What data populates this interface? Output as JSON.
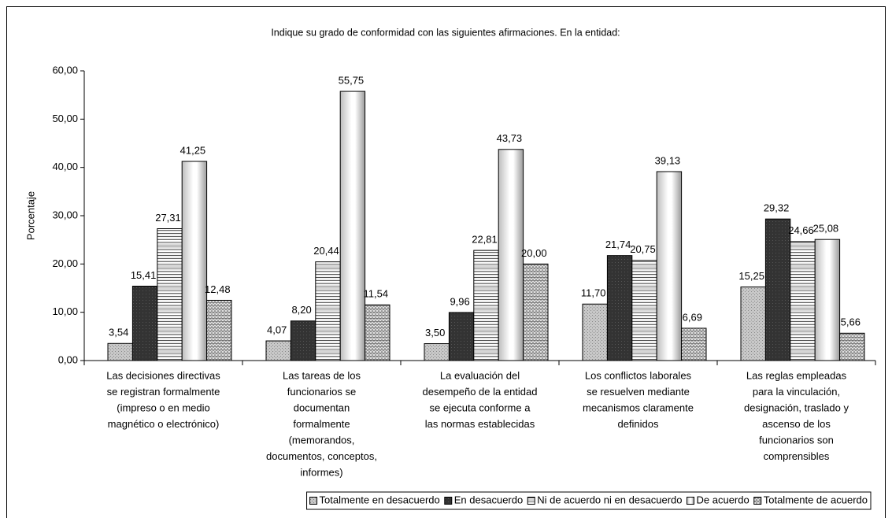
{
  "chart_data": {
    "type": "bar",
    "title": "Indique su grado de conformidad con las siguientes afirmaciones. En la entidad:",
    "y_label": "Porcentaje",
    "categories": [
      [
        "Las decisiones directivas",
        "se registran formalmente",
        "(impreso o en medio",
        "magnético o electrónico)"
      ],
      [
        "Las tareas de los",
        "funcionarios se",
        "documentan",
        "formalmente",
        "(memorandos,",
        "documentos, conceptos,",
        "informes)"
      ],
      [
        "La evaluación del",
        "desempeño de la entidad",
        "se ejecuta conforme a",
        "las normas establecidas"
      ],
      [
        "Los conflictos laborales",
        "se resuelven mediante",
        "mecanismos claramente",
        "definidos"
      ],
      [
        "Las reglas empleadas",
        "para la vinculación,",
        "designación, traslado y",
        "ascenso de los",
        "funcionarios son",
        "comprensibles"
      ]
    ],
    "series": [
      {
        "name": "Totalmente en desacuerdo",
        "color": "#c8c8c8",
        "values": [
          3.54,
          4.07,
          3.5,
          11.7,
          15.25
        ],
        "value_labels": [
          "3,54",
          "4,07",
          "3,50",
          "11,70",
          "15,25"
        ]
      },
      {
        "name": "En desacuerdo",
        "color": "#333333",
        "values": [
          15.41,
          8.2,
          9.96,
          21.74,
          29.32
        ],
        "value_labels": [
          "15,41",
          "8,20",
          "9,96",
          "21,74",
          "29,32"
        ]
      },
      {
        "name": "Ni de acuerdo ni en desacuerdo",
        "color": "#ffffff",
        "values": [
          27.31,
          20.44,
          22.81,
          20.75,
          24.66
        ],
        "value_labels": [
          "27,31",
          "20,44",
          "22,81",
          "20,75",
          "24,66"
        ]
      },
      {
        "name": "De acuerdo",
        "color": "#ffffff",
        "values": [
          41.25,
          55.75,
          43.73,
          39.13,
          25.08
        ],
        "value_labels": [
          "41,25",
          "55,75",
          "43,73",
          "39,13",
          "25,08"
        ]
      },
      {
        "name": "Totalmente de acuerdo",
        "color": "#a0a0a0",
        "values": [
          12.48,
          11.54,
          20.0,
          6.69,
          5.66
        ],
        "value_labels": [
          "12,48",
          "11,54",
          "20,00",
          "6,69",
          "5,66"
        ]
      }
    ],
    "ylim": [
      0,
      60
    ],
    "yticks": [
      {
        "value": 0,
        "label": "0,00"
      },
      {
        "value": 10,
        "label": "10,00"
      },
      {
        "value": 20,
        "label": "20,00"
      },
      {
        "value": 30,
        "label": "30,00"
      },
      {
        "value": 40,
        "label": "40,00"
      },
      {
        "value": 50,
        "label": "50,00"
      },
      {
        "value": 60,
        "label": "60,00"
      }
    ],
    "grid": false,
    "legend": "bottom"
  }
}
